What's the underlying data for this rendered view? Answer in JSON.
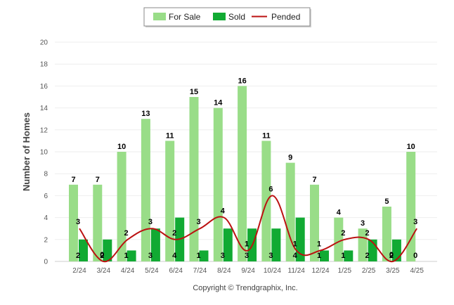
{
  "chart_data": {
    "type": "bar",
    "categories": [
      "2/24",
      "3/24",
      "4/24",
      "5/24",
      "6/24",
      "7/24",
      "8/24",
      "9/24",
      "10/24",
      "11/24",
      "12/24",
      "1/25",
      "2/25",
      "3/25",
      "4/25"
    ],
    "series": [
      {
        "name": "For Sale",
        "kind": "bar",
        "color": "#99dd88",
        "values": [
          7,
          7,
          10,
          13,
          11,
          15,
          14,
          16,
          11,
          9,
          7,
          4,
          3,
          5,
          10
        ]
      },
      {
        "name": "Sold",
        "kind": "bar",
        "color": "#11aa33",
        "values": [
          2,
          2,
          1,
          3,
          4,
          1,
          3,
          3,
          3,
          4,
          1,
          1,
          2,
          2,
          0
        ]
      },
      {
        "name": "Pended",
        "kind": "line",
        "color": "#bb1111",
        "values": [
          3,
          0,
          2,
          3,
          2,
          3,
          4,
          1,
          6,
          1,
          1,
          2,
          2,
          0,
          3
        ]
      }
    ],
    "ylabel": "Number of Homes",
    "xlabel": "",
    "ylim": [
      0,
      20
    ],
    "yticks": [
      0,
      2,
      4,
      6,
      8,
      10,
      12,
      14,
      16,
      18,
      20
    ],
    "grid": true,
    "legend_position": "top-center",
    "credit": "Copyright © Trendgraphix, Inc."
  }
}
